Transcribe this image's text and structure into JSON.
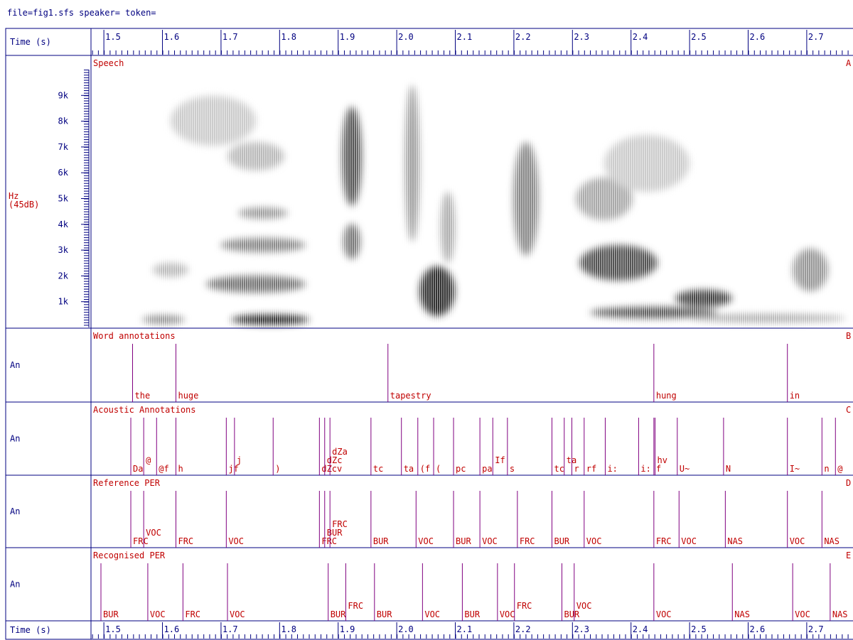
{
  "header": "file=fig1.sfs speaker= token=",
  "time_axis": {
    "label": "Time (s)",
    "xlim": [
      1.478,
      2.779
    ],
    "xticks": [
      1.5,
      1.6,
      1.7,
      1.8,
      1.9,
      {
        "value": 2,
        "label": "2.0"
      },
      2.1,
      2.2,
      2.3,
      2.4,
      2.5,
      2.6,
      2.7
    ]
  },
  "spectrogram": {
    "title": "Speech",
    "corner": "A",
    "ylabel": "Hz",
    "ylabel_sub": "(45dB)",
    "ylim": [
      0,
      10000
    ],
    "yticks": [
      {
        "value": 1000,
        "label": "1k"
      },
      {
        "value": 2000,
        "label": "2k"
      },
      {
        "value": 3000,
        "label": "3k"
      },
      {
        "value": 4000,
        "label": "4k"
      },
      {
        "value": 5000,
        "label": "5k"
      },
      {
        "value": 6000,
        "label": "6k"
      },
      {
        "value": 7000,
        "label": "7k"
      },
      {
        "value": 8000,
        "label": "8k"
      },
      {
        "value": 9000,
        "label": "9k"
      }
    ]
  },
  "tiers": [
    {
      "title": "Word annotations",
      "corner": "B",
      "ylabel": "An",
      "annotations": [
        {
          "time": 1.549,
          "label": "the"
        },
        {
          "time": 1.623,
          "label": "huge"
        },
        {
          "time": 1.985,
          "label": "tapestry"
        },
        {
          "time": 2.439,
          "label": "hung"
        },
        {
          "time": 2.667,
          "label": "in"
        }
      ]
    },
    {
      "title": "Acoustic Annotations",
      "corner": "C",
      "ylabel": "An",
      "annotations": [
        {
          "time": 1.546,
          "label": "Da"
        },
        {
          "time": 1.568,
          "label": "@"
        },
        {
          "time": 1.59,
          "label": "@f"
        },
        {
          "time": 1.623,
          "label": "h"
        },
        {
          "time": 1.709,
          "label": "jf"
        },
        {
          "time": 1.723,
          "label": "j"
        },
        {
          "time": 1.789,
          "label": ")"
        },
        {
          "time": 1.868,
          "label": "dZcv"
        },
        {
          "time": 1.877,
          "label": "dZc"
        },
        {
          "time": 1.886,
          "label": "dZa"
        },
        {
          "time": 1.956,
          "label": "tc"
        },
        {
          "time": 2.008,
          "label": "ta"
        },
        {
          "time": 2.036,
          "label": "(f"
        },
        {
          "time": 2.063,
          "label": "("
        },
        {
          "time": 2.097,
          "label": "pc"
        },
        {
          "time": 2.142,
          "label": "pa"
        },
        {
          "time": 2.164,
          "label": "If"
        },
        {
          "time": 2.189,
          "label": "s"
        },
        {
          "time": 2.265,
          "label": "tc"
        },
        {
          "time": 2.286,
          "label": "ta"
        },
        {
          "time": 2.299,
          "label": "r"
        },
        {
          "time": 2.32,
          "label": "rf"
        },
        {
          "time": 2.356,
          "label": "i:"
        },
        {
          "time": 2.413,
          "label": "i:"
        },
        {
          "time": 2.439,
          "label": "f"
        },
        {
          "time": 2.441,
          "label": "hv"
        },
        {
          "time": 2.479,
          "label": "U~"
        },
        {
          "time": 2.558,
          "label": "N"
        },
        {
          "time": 2.667,
          "label": "I~"
        },
        {
          "time": 2.726,
          "label": "n"
        },
        {
          "time": 2.749,
          "label": "@"
        }
      ]
    },
    {
      "title": "Reference PER",
      "corner": "D",
      "ylabel": "An",
      "annotations": [
        {
          "time": 1.546,
          "label": "FRC"
        },
        {
          "time": 1.568,
          "label": "VOC"
        },
        {
          "time": 1.623,
          "label": "FRC"
        },
        {
          "time": 1.709,
          "label": "VOC"
        },
        {
          "time": 1.868,
          "label": "FRC"
        },
        {
          "time": 1.877,
          "label": "BUR"
        },
        {
          "time": 1.886,
          "label": "FRC"
        },
        {
          "time": 1.956,
          "label": "BUR"
        },
        {
          "time": 2.033,
          "label": "VOC"
        },
        {
          "time": 2.097,
          "label": "BUR"
        },
        {
          "time": 2.142,
          "label": "VOC"
        },
        {
          "time": 2.206,
          "label": "FRC"
        },
        {
          "time": 2.265,
          "label": "BUR"
        },
        {
          "time": 2.32,
          "label": "VOC"
        },
        {
          "time": 2.439,
          "label": "FRC"
        },
        {
          "time": 2.482,
          "label": "VOC"
        },
        {
          "time": 2.561,
          "label": "NAS"
        },
        {
          "time": 2.667,
          "label": "VOC"
        },
        {
          "time": 2.726,
          "label": "NAS"
        }
      ]
    },
    {
      "title": "Recognised PER",
      "corner": "E",
      "ylabel": "An",
      "annotations": [
        {
          "time": 1.495,
          "label": "BUR"
        },
        {
          "time": 1.575,
          "label": "VOC"
        },
        {
          "time": 1.635,
          "label": "FRC"
        },
        {
          "time": 1.711,
          "label": "VOC"
        },
        {
          "time": 1.883,
          "label": "BUR"
        },
        {
          "time": 1.913,
          "label": "FRC"
        },
        {
          "time": 1.962,
          "label": "BUR"
        },
        {
          "time": 2.044,
          "label": "VOC"
        },
        {
          "time": 2.112,
          "label": "BUR"
        },
        {
          "time": 2.172,
          "label": "VOC"
        },
        {
          "time": 2.201,
          "label": "FRC"
        },
        {
          "time": 2.282,
          "label": "BUR"
        },
        {
          "time": 2.303,
          "label": "VOC"
        },
        {
          "time": 2.439,
          "label": "VOC"
        },
        {
          "time": 2.573,
          "label": "NAS"
        },
        {
          "time": 2.676,
          "label": "VOC"
        },
        {
          "time": 2.74,
          "label": "NAS"
        }
      ]
    }
  ]
}
